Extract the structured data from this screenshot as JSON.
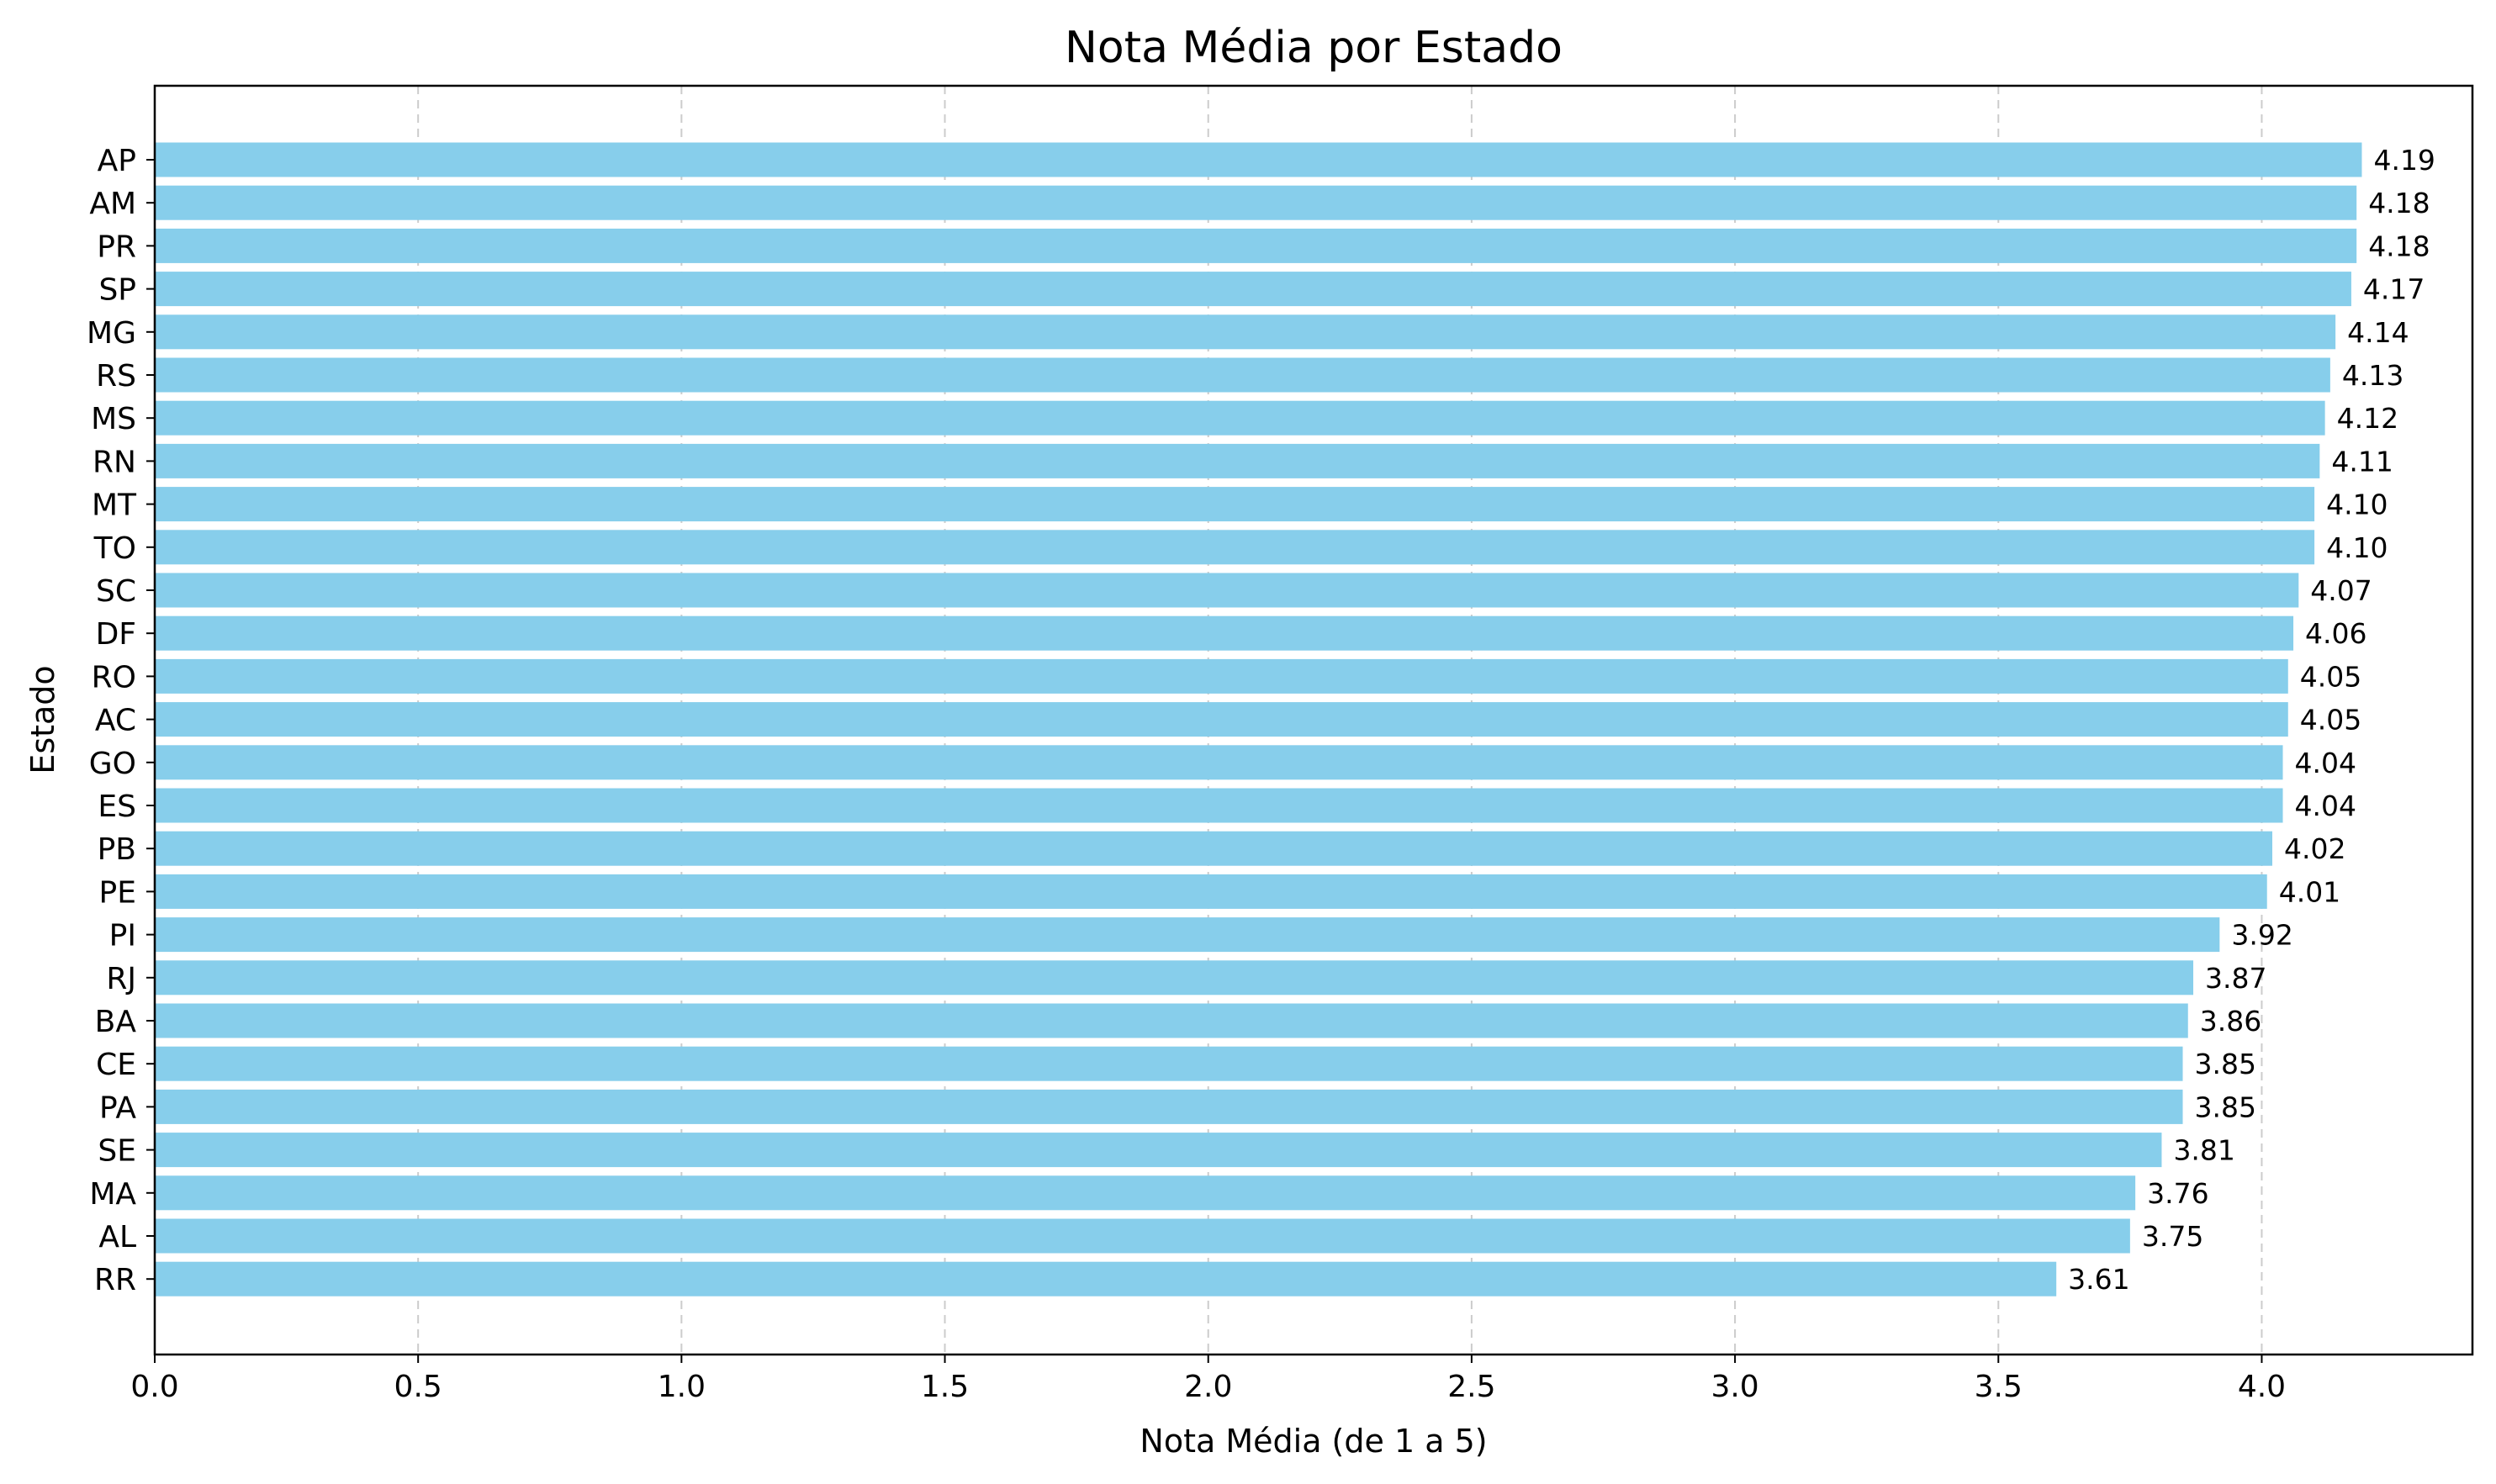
{
  "chart_data": {
    "type": "bar",
    "orientation": "horizontal",
    "title": "Nota Média por Estado",
    "xlabel": "Nota Média (de 1 a 5)",
    "ylabel": "Estado",
    "xlim": [
      0,
      4.4
    ],
    "xticks": [
      "0.0",
      "0.5",
      "1.0",
      "1.5",
      "2.0",
      "2.5",
      "3.0",
      "3.5",
      "4.0"
    ],
    "grid": "x-dashed",
    "bar_color": "#87ceeb",
    "categories": [
      "AP",
      "AM",
      "PR",
      "SP",
      "MG",
      "RS",
      "MS",
      "RN",
      "MT",
      "TO",
      "SC",
      "DF",
      "RO",
      "AC",
      "GO",
      "ES",
      "PB",
      "PE",
      "PI",
      "RJ",
      "BA",
      "CE",
      "PA",
      "SE",
      "MA",
      "AL",
      "RR"
    ],
    "values": [
      4.19,
      4.18,
      4.18,
      4.17,
      4.14,
      4.13,
      4.12,
      4.11,
      4.1,
      4.1,
      4.07,
      4.06,
      4.05,
      4.05,
      4.04,
      4.04,
      4.02,
      4.01,
      3.92,
      3.87,
      3.86,
      3.85,
      3.85,
      3.81,
      3.76,
      3.75,
      3.61
    ],
    "value_labels": [
      "4.19",
      "4.18",
      "4.18",
      "4.17",
      "4.14",
      "4.13",
      "4.12",
      "4.11",
      "4.10",
      "4.10",
      "4.07",
      "4.06",
      "4.05",
      "4.05",
      "4.04",
      "4.04",
      "4.02",
      "4.01",
      "3.92",
      "3.87",
      "3.86",
      "3.85",
      "3.85",
      "3.81",
      "3.76",
      "3.75",
      "3.61"
    ]
  }
}
